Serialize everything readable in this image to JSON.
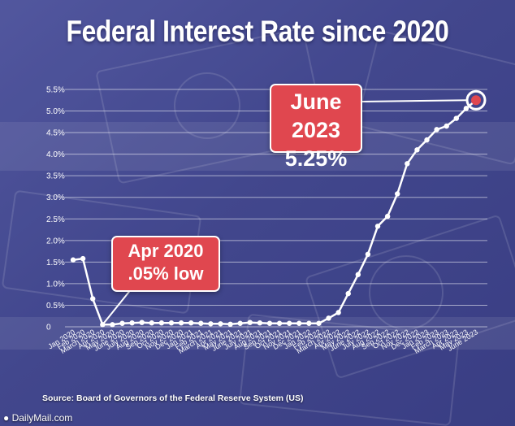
{
  "title": "Federal Interest Rate since 2020",
  "source": "Source: Board of Governors of the Federal Reserve System (US)",
  "credit": "● DailyMail.com",
  "callouts": {
    "high": {
      "line1": "June 2023",
      "line2": "5.25%"
    },
    "low": {
      "line1": "Apr 2020",
      "line2": ".05% low"
    }
  },
  "colors": {
    "line": "#ffffff",
    "callout": "#e0474f",
    "background": "#4a4f96"
  },
  "chart_data": {
    "type": "line",
    "title": "Federal Interest Rate since 2020",
    "xlabel": "",
    "ylabel": "",
    "ylim": [
      0,
      5.5
    ],
    "grid": true,
    "y_ticks": [
      "0",
      "0.5%",
      "1.0%",
      "1.5%",
      "2.0%",
      "2.5%",
      "3.0%",
      "3.5%",
      "4.0%",
      "4.5%",
      "5.0%",
      "5.5%"
    ],
    "y_tick_values": [
      0,
      0.5,
      1.0,
      1.5,
      2.0,
      2.5,
      3.0,
      3.5,
      4.0,
      4.5,
      5.0,
      5.5
    ],
    "x_tick_labels": [
      "Jan 2020",
      "Feb 2020",
      "March 2020",
      "Apr 2020",
      "May 2020",
      "June 2020",
      "July 2020",
      "Aug 2020",
      "Sep 2020",
      "Oct 2020",
      "Nov 2020",
      "Dec 2020",
      "Jan 2021",
      "Feb 2021",
      "March 2021",
      "Apr 2021",
      "May 2021",
      "June 2021",
      "July 2021",
      "Aug 2021",
      "Sep 2021",
      "Oct 2021",
      "Nov 2021",
      "Dec 2021",
      "Jan 2022",
      "Feb 2022",
      "March 2022",
      "Apr 2022",
      "May 2022",
      "June 2022",
      "July 2022",
      "Aug 2022",
      "Sep 2022",
      "Oct 2022",
      "Nov 2022",
      "Dec 2022",
      "Jan 2023",
      "Feb 2023",
      "March 2023",
      "Apr 2023",
      "May 2023",
      "June 2023"
    ],
    "series": [
      {
        "values": [
          1.55,
          1.58,
          0.65,
          0.05,
          0.05,
          0.08,
          0.09,
          0.1,
          0.09,
          0.09,
          0.09,
          0.09,
          0.09,
          0.08,
          0.07,
          0.07,
          0.06,
          0.08,
          0.1,
          0.09,
          0.08,
          0.08,
          0.08,
          0.08,
          0.08,
          0.08,
          0.2,
          0.33,
          0.77,
          1.21,
          1.68,
          2.33,
          2.56,
          3.08,
          3.78,
          4.1,
          4.33,
          4.57,
          4.65,
          4.83,
          5.06,
          5.25
        ]
      }
    ],
    "annotations": [
      {
        "x": "June 2023",
        "text": "June 2023 5.25%"
      },
      {
        "x": "Apr 2020",
        "text": "Apr 2020 .05% low"
      }
    ]
  }
}
